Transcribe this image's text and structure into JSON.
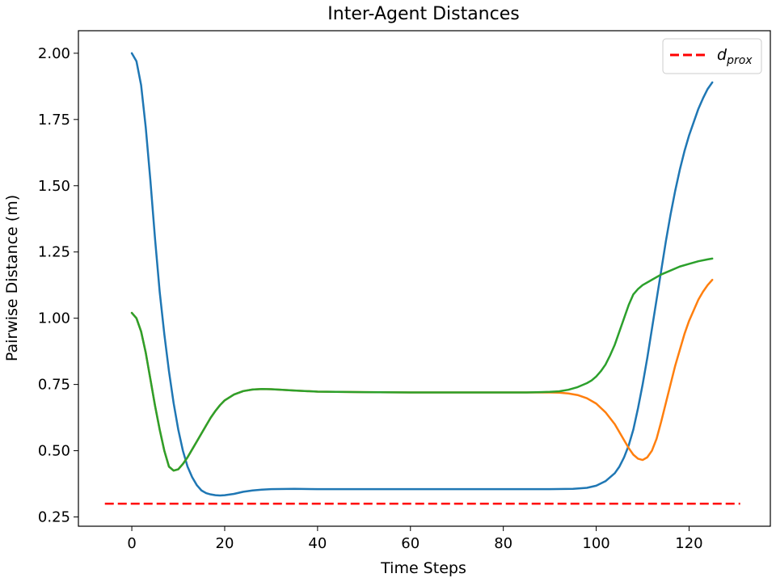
{
  "chart_data": {
    "type": "line",
    "title": "Inter-Agent Distances",
    "xlabel": "Time Steps",
    "ylabel": "Pairwise Distance (m)",
    "xlim": [
      -11.5,
      137.5
    ],
    "ylim": [
      0.215,
      2.085
    ],
    "xticks": [
      0,
      20,
      40,
      60,
      80,
      100,
      120
    ],
    "yticks": [
      0.25,
      0.5,
      0.75,
      1.0,
      1.25,
      1.5,
      1.75,
      2.0
    ],
    "ytick_labels": [
      "0.25",
      "0.50",
      "0.75",
      "1.00",
      "1.25",
      "1.50",
      "1.75",
      "2.00"
    ],
    "grid": false,
    "legend_position": "top-right",
    "series": [
      {
        "color": "#1f77b4",
        "x": [
          0,
          1,
          2,
          3,
          4,
          5,
          6,
          7,
          8,
          9,
          10,
          11,
          12,
          13,
          14,
          15,
          16,
          17,
          18,
          19,
          20,
          22,
          24,
          26,
          28,
          30,
          35,
          40,
          50,
          60,
          70,
          80,
          90,
          95,
          98,
          100,
          102,
          104,
          105,
          106,
          107,
          108,
          109,
          110,
          111,
          112,
          113,
          114,
          115,
          116,
          117,
          118,
          119,
          120,
          121,
          122,
          123,
          124,
          125
        ],
        "y": [
          2.0,
          1.97,
          1.88,
          1.72,
          1.52,
          1.3,
          1.1,
          0.94,
          0.8,
          0.68,
          0.58,
          0.5,
          0.44,
          0.4,
          0.37,
          0.35,
          0.34,
          0.335,
          0.332,
          0.331,
          0.332,
          0.337,
          0.345,
          0.35,
          0.353,
          0.355,
          0.356,
          0.355,
          0.355,
          0.355,
          0.355,
          0.355,
          0.355,
          0.356,
          0.36,
          0.368,
          0.385,
          0.415,
          0.44,
          0.475,
          0.52,
          0.58,
          0.66,
          0.75,
          0.85,
          0.96,
          1.07,
          1.18,
          1.29,
          1.39,
          1.48,
          1.56,
          1.63,
          1.69,
          1.74,
          1.79,
          1.83,
          1.865,
          1.89
        ]
      },
      {
        "color": "#ff7f0e",
        "x": [
          0,
          1,
          2,
          3,
          4,
          5,
          6,
          7,
          8,
          9,
          10,
          11,
          12,
          13,
          14,
          15,
          16,
          17,
          18,
          19,
          20,
          22,
          24,
          26,
          28,
          30,
          32,
          35,
          40,
          50,
          60,
          70,
          80,
          85,
          88,
          90,
          92,
          94,
          96,
          98,
          100,
          102,
          104,
          106,
          107,
          108,
          109,
          110,
          111,
          112,
          113,
          114,
          115,
          116,
          117,
          118,
          119,
          120,
          121,
          122,
          123,
          124,
          125
        ],
        "y": [
          1.02,
          1.0,
          0.95,
          0.87,
          0.77,
          0.67,
          0.58,
          0.5,
          0.44,
          0.425,
          0.43,
          0.45,
          0.475,
          0.505,
          0.535,
          0.565,
          0.595,
          0.625,
          0.65,
          0.672,
          0.69,
          0.712,
          0.725,
          0.731,
          0.733,
          0.732,
          0.73,
          0.727,
          0.723,
          0.721,
          0.72,
          0.72,
          0.72,
          0.72,
          0.72,
          0.72,
          0.719,
          0.716,
          0.71,
          0.698,
          0.678,
          0.645,
          0.6,
          0.54,
          0.51,
          0.485,
          0.47,
          0.465,
          0.475,
          0.5,
          0.545,
          0.61,
          0.68,
          0.75,
          0.82,
          0.88,
          0.94,
          0.99,
          1.03,
          1.07,
          1.1,
          1.125,
          1.145
        ]
      },
      {
        "color": "#2ca02c",
        "x": [
          0,
          1,
          2,
          3,
          4,
          5,
          6,
          7,
          8,
          9,
          10,
          11,
          12,
          13,
          14,
          15,
          16,
          17,
          18,
          19,
          20,
          22,
          24,
          26,
          28,
          30,
          32,
          35,
          40,
          50,
          60,
          70,
          80,
          85,
          88,
          90,
          92,
          94,
          96,
          98,
          99,
          100,
          101,
          102,
          103,
          104,
          105,
          106,
          107,
          108,
          109,
          110,
          112,
          114,
          116,
          118,
          120,
          122,
          124,
          125
        ],
        "y": [
          1.02,
          1.0,
          0.95,
          0.87,
          0.77,
          0.67,
          0.58,
          0.5,
          0.44,
          0.425,
          0.43,
          0.45,
          0.475,
          0.505,
          0.535,
          0.565,
          0.595,
          0.625,
          0.65,
          0.672,
          0.69,
          0.712,
          0.725,
          0.731,
          0.733,
          0.732,
          0.73,
          0.727,
          0.723,
          0.721,
          0.72,
          0.72,
          0.72,
          0.72,
          0.721,
          0.722,
          0.724,
          0.73,
          0.74,
          0.755,
          0.765,
          0.78,
          0.8,
          0.825,
          0.86,
          0.9,
          0.95,
          1.0,
          1.05,
          1.09,
          1.11,
          1.125,
          1.145,
          1.165,
          1.18,
          1.195,
          1.205,
          1.215,
          1.222,
          1.225
        ]
      }
    ],
    "reference_line": {
      "label_base": "d",
      "label_sub": "prox",
      "y": 0.3,
      "x_start": -5.8,
      "x_end": 131,
      "color": "#ff0000",
      "style": "dashed"
    }
  }
}
